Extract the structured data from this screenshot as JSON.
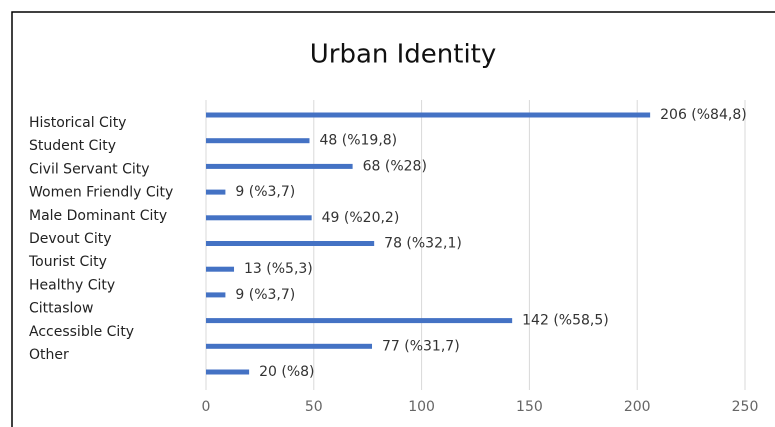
{
  "chart_data": {
    "type": "bar",
    "orientation": "horizontal",
    "title": "Urban Identity",
    "categories": [
      "Historical City",
      "Student City",
      "Civil Servant City",
      "Women Friendly City",
      "Male Dominant City",
      "Devout City",
      "Tourist City",
      "Healthy City",
      "Cittaslow",
      "Accessible City",
      "Other"
    ],
    "values": [
      206,
      48,
      68,
      9,
      49,
      78,
      13,
      9,
      142,
      77,
      20
    ],
    "value_labels": [
      "206 (%84,8)",
      "48 (%19,8)",
      "68 (%28)",
      "9 (%3,7)",
      "49 (%20,2)",
      "78 (%32,1)",
      "13 (%5,3)",
      "9 (%3,7)",
      "142 (%58,5)",
      "77 (%31,7)",
      "20 (%8)"
    ],
    "color": "#4472c4",
    "xlim": [
      0,
      250
    ],
    "xticks": [
      0,
      50,
      100,
      150,
      200,
      250
    ],
    "grid": true
  }
}
